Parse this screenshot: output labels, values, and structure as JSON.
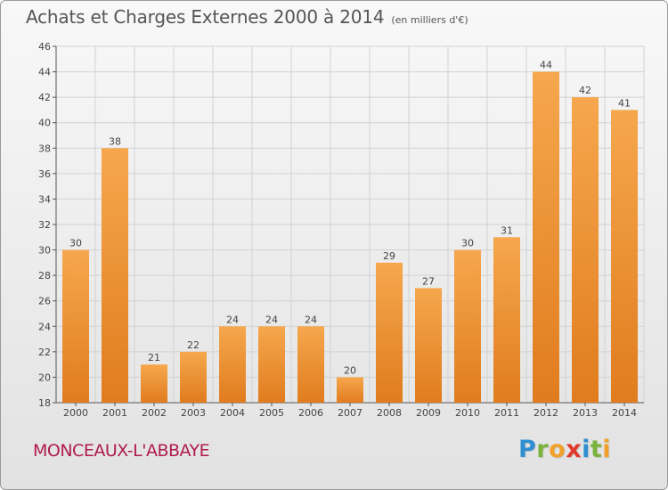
{
  "chart_data": {
    "type": "bar",
    "title": "Achats et Charges Externes 2000 à 2014",
    "subtitle": "(en milliers d'€)",
    "categories": [
      "2000",
      "2001",
      "2002",
      "2003",
      "2004",
      "2005",
      "2006",
      "2007",
      "2008",
      "2009",
      "2010",
      "2011",
      "2012",
      "2013",
      "2014"
    ],
    "values": [
      30,
      38,
      21,
      22,
      24,
      24,
      24,
      20,
      29,
      27,
      30,
      31,
      44,
      42,
      41
    ],
    "ylim": [
      18,
      46
    ],
    "yticks": [
      18,
      20,
      22,
      24,
      26,
      28,
      30,
      32,
      34,
      36,
      38,
      40,
      42,
      44,
      46
    ],
    "grid": true,
    "bar_color_top": "#f6a74d",
    "bar_color_bottom": "#e07c1e"
  },
  "footer": {
    "commune": "MONCEAUX-L'ABBAYE",
    "logo_letters": [
      {
        "ch": "P",
        "color": "#2f8fd1"
      },
      {
        "ch": "r",
        "color": "#7ab33c"
      },
      {
        "ch": "o",
        "color": "#f1a129"
      },
      {
        "ch": "x",
        "color": "#e03a2d"
      },
      {
        "ch": "i",
        "color": "#2f8fd1"
      },
      {
        "ch": "t",
        "color": "#7ab33c"
      },
      {
        "ch": "i",
        "color": "#f1a129"
      }
    ]
  }
}
